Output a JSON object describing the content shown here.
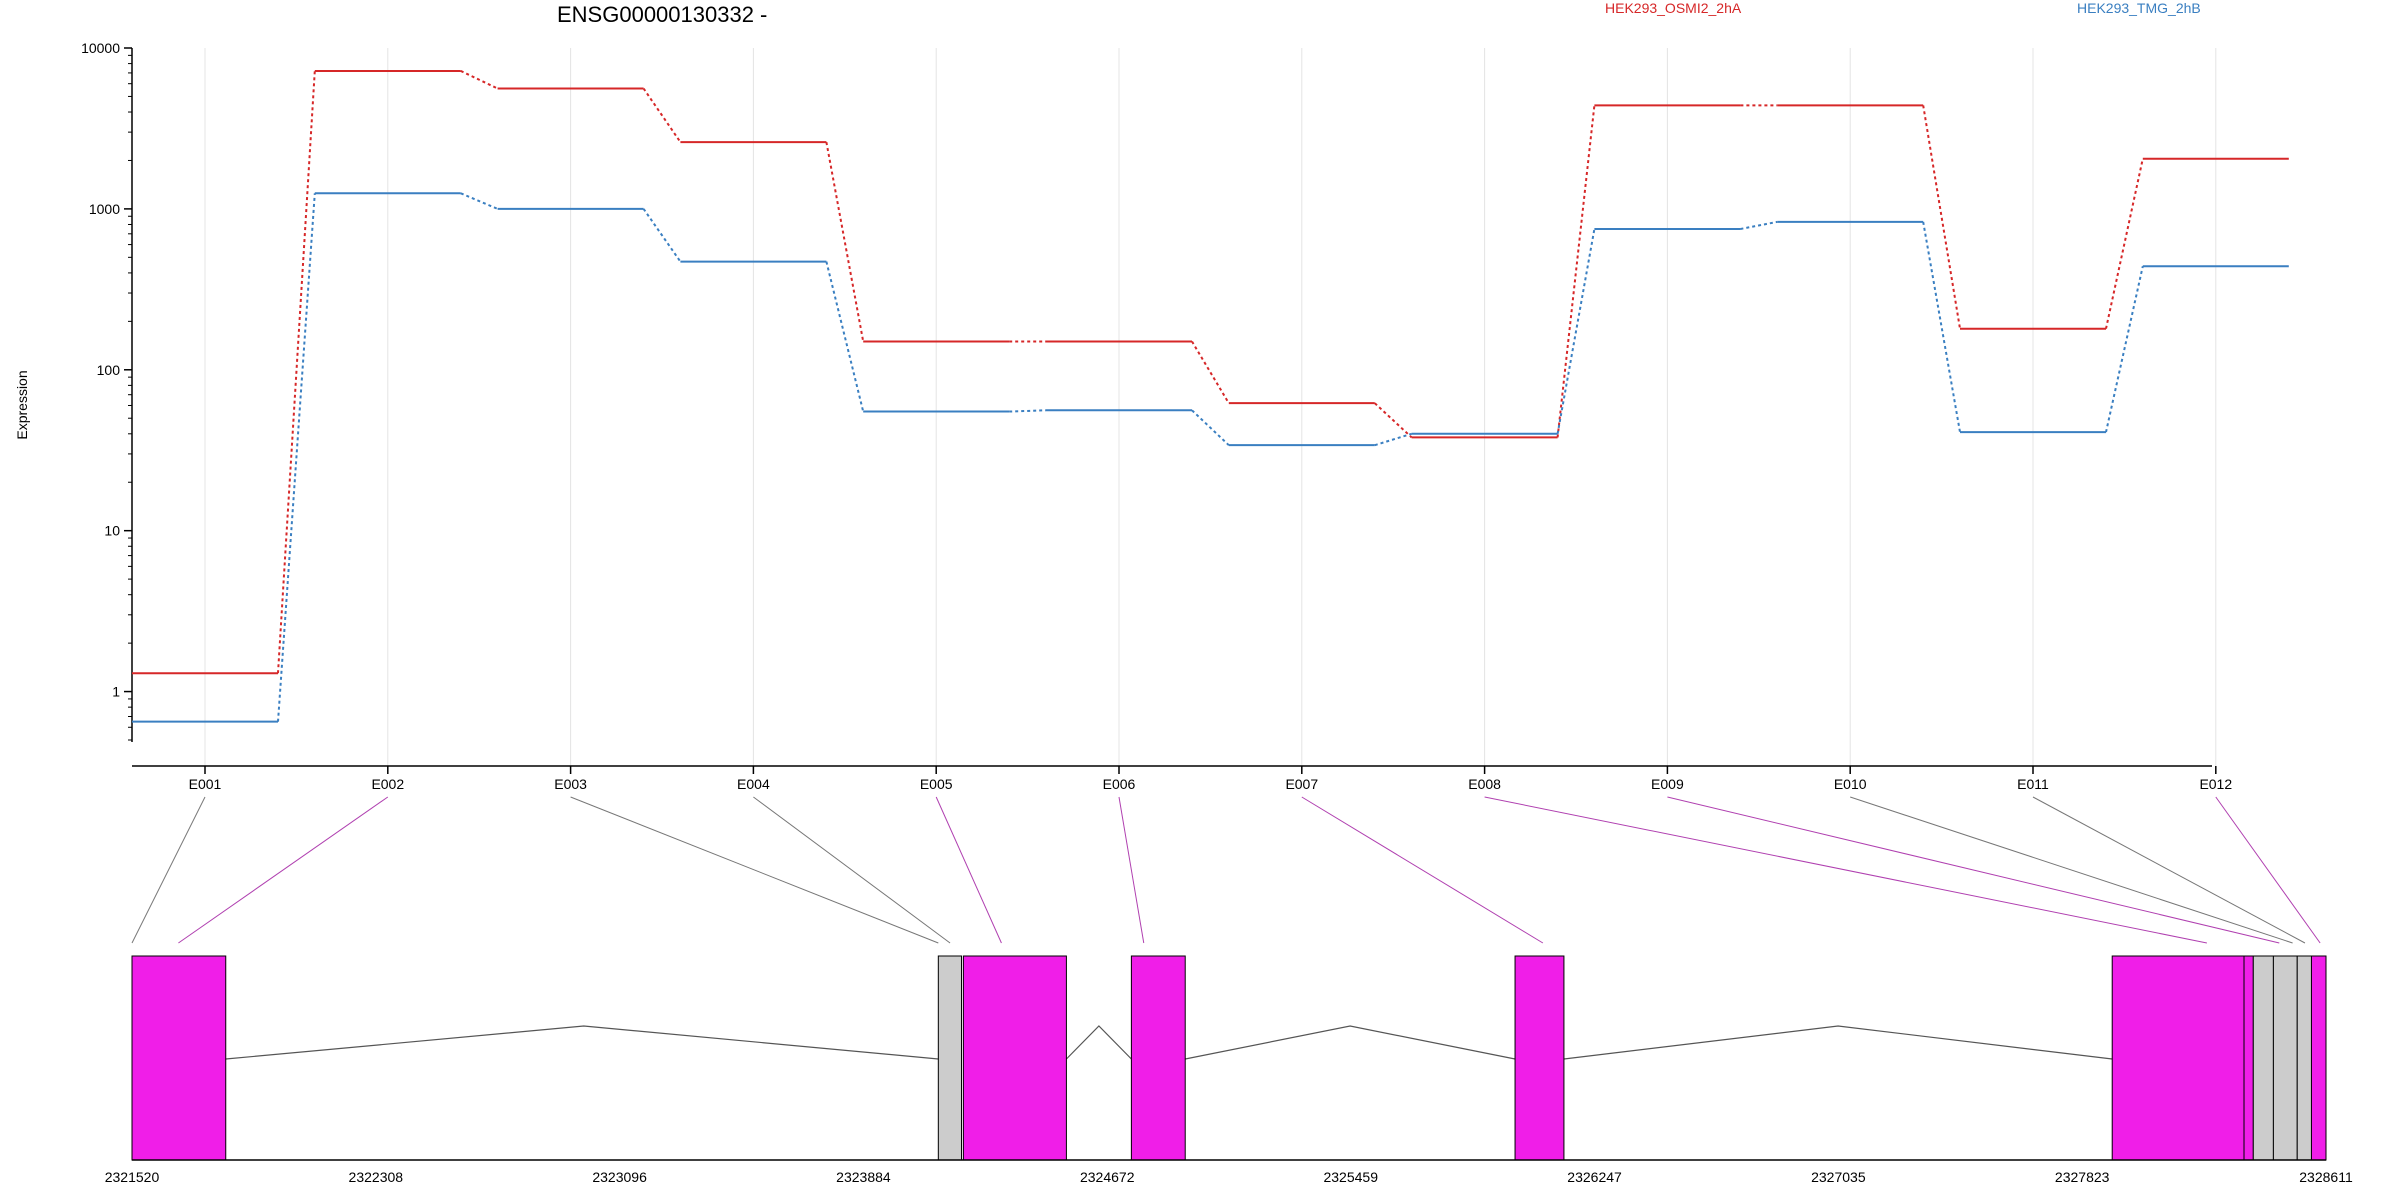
{
  "chart_data": {
    "type": "line",
    "title": "ENSG00000130332 -",
    "ylabel": "Expression",
    "yscale": "log",
    "ylim": [
      0.5,
      10000
    ],
    "yticks": [
      "10000",
      "1000",
      "100",
      "10",
      "1"
    ],
    "grid": true,
    "legend_position": "top-right",
    "categories": [
      "E001",
      "E002",
      "E003",
      "E004",
      "E005",
      "E006",
      "E007",
      "E008",
      "E009",
      "E010",
      "E011",
      "E012"
    ],
    "series": [
      {
        "name": "HEK293_OSMI2_2hA",
        "color": "#d62728",
        "values": [
          1.3,
          7200,
          5600,
          2600,
          150,
          150,
          62,
          38,
          4400,
          4400,
          180,
          2050
        ]
      },
      {
        "name": "HEK293_TMG_2hB",
        "color": "#3a7fc1",
        "values": [
          0.65,
          1250,
          1000,
          470,
          55,
          56,
          34,
          40,
          750,
          830,
          41,
          440
        ]
      }
    ],
    "gene_model": {
      "coordinate_labels": [
        "2321520",
        "2322308",
        "2323096",
        "2323884",
        "2324672",
        "2325459",
        "2326247",
        "2327035",
        "2327823",
        "2328611"
      ],
      "range": [
        2321520,
        2328611
      ],
      "exon_color": "#f01ee8",
      "unused_color": "#cccccc",
      "blocks": [
        {
          "start": 2321520,
          "end": 2321823,
          "kind": "exon"
        },
        {
          "start": 2324126,
          "end": 2324201,
          "kind": "unused"
        },
        {
          "start": 2324207,
          "end": 2324540,
          "kind": "exon"
        },
        {
          "start": 2324750,
          "end": 2324924,
          "kind": "exon"
        },
        {
          "start": 2325990,
          "end": 2326148,
          "kind": "exon"
        },
        {
          "start": 2327920,
          "end": 2328346,
          "kind": "exon"
        },
        {
          "start": 2328346,
          "end": 2328376,
          "kind": "exon"
        },
        {
          "start": 2328376,
          "end": 2328441,
          "kind": "unused"
        },
        {
          "start": 2328441,
          "end": 2328518,
          "kind": "unused"
        },
        {
          "start": 2328518,
          "end": 2328564,
          "kind": "unused"
        },
        {
          "start": 2328564,
          "end": 2328611,
          "kind": "exon"
        }
      ],
      "introns": [
        {
          "from": 2321823,
          "to": 2324126,
          "peak": 2322980
        },
        {
          "from": 2324540,
          "to": 2324750,
          "peak": 2324645
        },
        {
          "from": 2324924,
          "to": 2325990,
          "peak": 2325457
        },
        {
          "from": 2326148,
          "to": 2327920,
          "peak": 2327034
        }
      ],
      "exon_links": [
        {
          "label": "E001",
          "genomic": 2321520,
          "kind": "unused"
        },
        {
          "label": "E002",
          "genomic": 2321670,
          "kind": "exon"
        },
        {
          "label": "E003",
          "genomic": 2324126,
          "kind": "unused"
        },
        {
          "label": "E004",
          "genomic": 2324164,
          "kind": "unused"
        },
        {
          "label": "E005",
          "genomic": 2324330,
          "kind": "exon"
        },
        {
          "label": "E006",
          "genomic": 2324790,
          "kind": "exon"
        },
        {
          "label": "E007",
          "genomic": 2326080,
          "kind": "exon"
        },
        {
          "label": "E008",
          "genomic": 2328226,
          "kind": "exon"
        },
        {
          "label": "E009",
          "genomic": 2328460,
          "kind": "exon"
        },
        {
          "label": "E010",
          "genomic": 2328503,
          "kind": "unused"
        },
        {
          "label": "E011",
          "genomic": 2328543,
          "kind": "unused"
        },
        {
          "label": "E012",
          "genomic": 2328592,
          "kind": "exon"
        }
      ]
    }
  }
}
